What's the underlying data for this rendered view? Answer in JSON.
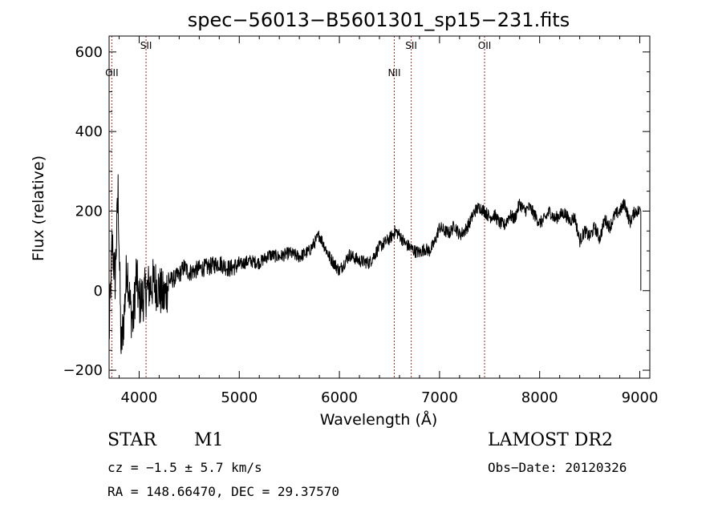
{
  "chart_data": {
    "type": "line",
    "title": "spec−56013−B5601301_sp15−231.fits",
    "xlabel": "Wavelength (Å)",
    "ylabel": "Flux (relative)",
    "xlim": [
      3700,
      9100
    ],
    "ylim": [
      -220,
      640
    ],
    "x_ticks": [
      4000,
      5000,
      6000,
      7000,
      8000,
      9000
    ],
    "y_ticks": [
      -200,
      0,
      200,
      400,
      600
    ],
    "line_color": "#000000",
    "marker_color": "#a0302a",
    "series": [
      {
        "x": [
          3700,
          3730,
          3760,
          3790,
          3820,
          3850,
          3880,
          3910,
          3940,
          3970,
          4000,
          4050,
          4100,
          4150,
          4200,
          4250,
          4300,
          4350,
          4400,
          4450,
          4500,
          4600,
          4700,
          4800,
          4900,
          5000,
          5100,
          5200,
          5300,
          5400,
          5500,
          5600,
          5700,
          5800,
          5900,
          6000,
          6100,
          6200,
          6300,
          6400,
          6500,
          6560,
          6600,
          6650,
          6700,
          6750,
          6800,
          6850,
          6900,
          6950,
          7000,
          7050,
          7100,
          7150,
          7200,
          7250,
          7300,
          7350,
          7400,
          7450,
          7500,
          7550,
          7600,
          7650,
          7700,
          7750,
          7800,
          7850,
          7900,
          7950,
          8000,
          8050,
          8100,
          8150,
          8200,
          8250,
          8300,
          8350,
          8400,
          8450,
          8500,
          8550,
          8600,
          8650,
          8700,
          8750,
          8800,
          8850,
          8900,
          8950,
          9000,
          9010
        ],
        "y": [
          -120,
          120,
          30,
          250,
          -150,
          -60,
          70,
          -40,
          -80,
          40,
          -30,
          -10,
          10,
          20,
          5,
          -20,
          25,
          30,
          40,
          60,
          45,
          55,
          60,
          70,
          55,
          65,
          75,
          70,
          90,
          85,
          95,
          85,
          100,
          140,
          85,
          50,
          90,
          75,
          70,
          110,
          130,
          150,
          140,
          120,
          110,
          100,
          95,
          105,
          100,
          120,
          160,
          150,
          145,
          165,
          140,
          150,
          170,
          200,
          210,
          200,
          185,
          190,
          170,
          165,
          190,
          180,
          220,
          200,
          210,
          190,
          170,
          180,
          200,
          180,
          190,
          195,
          175,
          185,
          125,
          150,
          135,
          160,
          130,
          180,
          160,
          190,
          200,
          220,
          170,
          200,
          200,
          0
        ]
      }
    ],
    "line_markers": [
      {
        "label": "OII",
        "x": 3727,
        "label_row": "lower"
      },
      {
        "label": "SII",
        "x": 4069,
        "label_row": "upper"
      },
      {
        "label": "NII",
        "x": 6548,
        "label_row": "lower"
      },
      {
        "label": "SII",
        "x": 6717,
        "label_row": "upper"
      },
      {
        "label": "OII",
        "x": 7450,
        "label_row": "upper"
      }
    ]
  },
  "info": {
    "class_label": "STAR",
    "subclass": "M1",
    "survey": "LAMOST DR2",
    "cz_line": "cz = −1.5 ± 5.7 km/s",
    "obs_date": "Obs−Date: 20120326",
    "coords": "RA = 148.66470, DEC =  29.37570"
  }
}
